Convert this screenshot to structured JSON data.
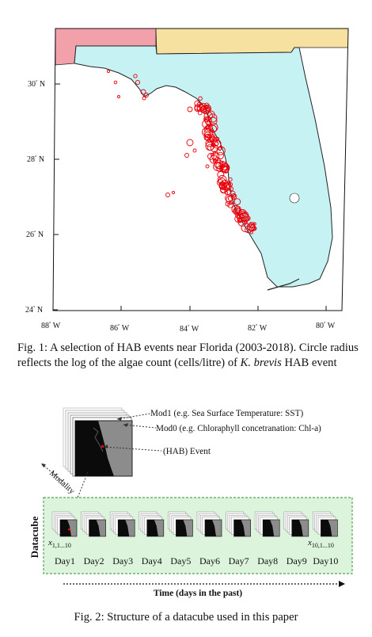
{
  "figure1": {
    "lat_labels": [
      "30",
      "28",
      "26",
      "24"
    ],
    "lat_suffix": "N",
    "lon_labels": [
      "88",
      "86",
      "84",
      "82",
      "80"
    ],
    "lon_suffix": "W",
    "caption": {
      "label": "Fig. 1:",
      "text_main": "A selection of HAB events near Florida (2003-2018). Circle radius reflects the log of the algae count (cells/litre) of",
      "species": "K. brevis",
      "text_end": "HAB event"
    },
    "colors": {
      "land_florida": "#c6f2f4",
      "land_alabama": "#f2a0aa",
      "land_georgia": "#f7e1a0",
      "event": "#e8000b"
    }
  },
  "figure2": {
    "mod1_label": "Mod1 (e.g. Sea Surface Temperature: SST)",
    "mod0_label": "Mod0 (e.g. Chloraphyll concetranation: Chl-a)",
    "event_label": "(HAB) Event",
    "modality_label": "Modality",
    "datacube_label": "Datacube",
    "x_first_base": "x",
    "x_first_sub": "1,1...10",
    "x_last_base": "x",
    "x_last_sub": "10,1...10",
    "days": [
      "Day1",
      "Day2",
      "Day3",
      "Day4",
      "Day5",
      "Day6",
      "Day7",
      "Day8",
      "Day9",
      "Day10"
    ],
    "time_label": "Time (days in the past)",
    "caption": "Fig. 2: Structure of a datacube used in this paper",
    "colors": {
      "datacube_fill": "#dcf4dc",
      "datacube_border": "#5aa05a"
    }
  }
}
